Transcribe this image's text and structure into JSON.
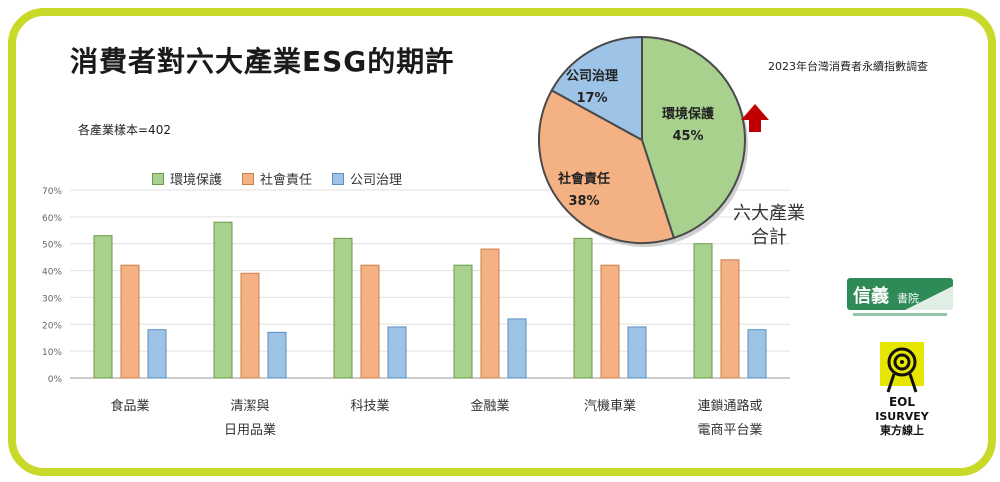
{
  "title": "消費者對六大產業ESG的期許",
  "source_note": "2023年台灣消費者永續指數調查",
  "sample_note": "各產業樣本=402",
  "colors": {
    "frame": "#c9d92a",
    "env": "#a9d18e",
    "social": "#f4b183",
    "gov": "#9dc3e6",
    "env_border": "#6a9a4b",
    "social_border": "#c9804d",
    "gov_border": "#5b8fbf",
    "arrow": "#c00000"
  },
  "chart_data": [
    {
      "type": "bar",
      "categories": [
        "食品業",
        "清潔與日用品業",
        "科技業",
        "金融業",
        "汽機車業",
        "連鎖通路或電商平台業"
      ],
      "category_lines": [
        [
          "食品業"
        ],
        [
          "清潔與",
          "日用品業"
        ],
        [
          "科技業"
        ],
        [
          "金融業"
        ],
        [
          "汽機車業"
        ],
        [
          "連鎖通路或",
          "電商平台業"
        ]
      ],
      "series": [
        {
          "name": "環境保護",
          "values": [
            53,
            58,
            52,
            42,
            52,
            50
          ]
        },
        {
          "name": "社會責任",
          "values": [
            42,
            39,
            42,
            48,
            42,
            44
          ]
        },
        {
          "name": "公司治理",
          "values": [
            18,
            17,
            19,
            22,
            19,
            18
          ]
        }
      ],
      "ylim": [
        0,
        70
      ],
      "yticks": [
        "0%",
        "10%",
        "20%",
        "30%",
        "40%",
        "50%",
        "60%",
        "70%"
      ],
      "legend": "top-left"
    },
    {
      "type": "pie",
      "caption_lines": [
        "六大產業",
        "合計"
      ],
      "slices": [
        {
          "label": "環境保護",
          "value": 45,
          "value_label": "45%"
        },
        {
          "label": "社會責任",
          "value": 38,
          "value_label": "38%"
        },
        {
          "label": "公司治理",
          "value": 17,
          "value_label": "17%"
        }
      ]
    }
  ],
  "logos": {
    "xinyi_text": "信義書院",
    "eol_text": "EOL ISURVEY 東方線上"
  }
}
